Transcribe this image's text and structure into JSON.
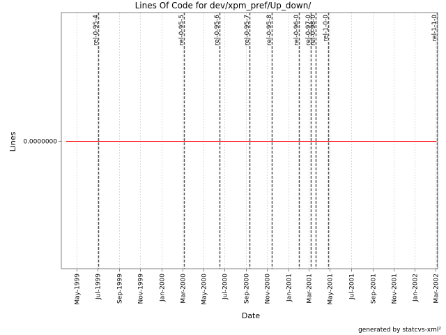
{
  "chart_data": {
    "type": "line",
    "title": "Lines Of Code for dev/xpm_pref/Up_down/",
    "xlabel": "Date",
    "ylabel": "Lines",
    "x_range": [
      "1999-03-18",
      "2002-03-08"
    ],
    "x_ticks": [
      {
        "label": "May-1999",
        "date": "1999-05-01"
      },
      {
        "label": "Jul-1999",
        "date": "1999-07-01"
      },
      {
        "label": "Sep-1999",
        "date": "1999-09-01"
      },
      {
        "label": "Nov-1999",
        "date": "1999-11-01"
      },
      {
        "label": "Jan-2000",
        "date": "2000-01-01"
      },
      {
        "label": "Mar-2000",
        "date": "2000-03-01"
      },
      {
        "label": "May-2000",
        "date": "2000-05-01"
      },
      {
        "label": "Jul-2000",
        "date": "2000-07-01"
      },
      {
        "label": "Sep-2000",
        "date": "2000-09-01"
      },
      {
        "label": "Nov-2000",
        "date": "2000-11-01"
      },
      {
        "label": "Jan-2001",
        "date": "2001-01-01"
      },
      {
        "label": "Mar-2001",
        "date": "2001-03-01"
      },
      {
        "label": "May-2001",
        "date": "2001-05-01"
      },
      {
        "label": "Jul-2001",
        "date": "2001-07-01"
      },
      {
        "label": "Sep-2001",
        "date": "2001-09-01"
      },
      {
        "label": "Nov-2001",
        "date": "2001-11-01"
      },
      {
        "label": "Jan-2002",
        "date": "2002-01-01"
      },
      {
        "label": "Mar-2002",
        "date": "2002-03-01"
      }
    ],
    "y_ticks": [
      {
        "label": "0.0000000",
        "value": 0
      }
    ],
    "ylim": [
      -1,
      1
    ],
    "grid": true,
    "series": [
      {
        "color": "#ff0000",
        "points": [
          {
            "x": "1999-04-01",
            "y": 0
          },
          {
            "x": "2002-03-05",
            "y": 0
          }
        ]
      }
    ],
    "tags": [
      {
        "label": "rel-0-95-4",
        "date": "1999-07-03"
      },
      {
        "label": "rel-0-95-5",
        "date": "2000-03-05"
      },
      {
        "label": "rel-0-95-6",
        "date": "2000-06-16"
      },
      {
        "label": "rel-0-95-7",
        "date": "2000-09-12"
      },
      {
        "label": "rel-0-95-8",
        "date": "2000-11-15"
      },
      {
        "label": "rel-0-96-0",
        "date": "2001-02-01"
      },
      {
        "label": "rel-0-97-0",
        "date": "2001-03-06"
      },
      {
        "label": "rel-0-98-0",
        "date": "2001-03-22"
      },
      {
        "label": "rel-1-0-0",
        "date": "2001-04-27"
      },
      {
        "label": "rel-1-1-0",
        "date": "2002-03-06"
      }
    ]
  },
  "footer": "generated by statcvs-xml²"
}
